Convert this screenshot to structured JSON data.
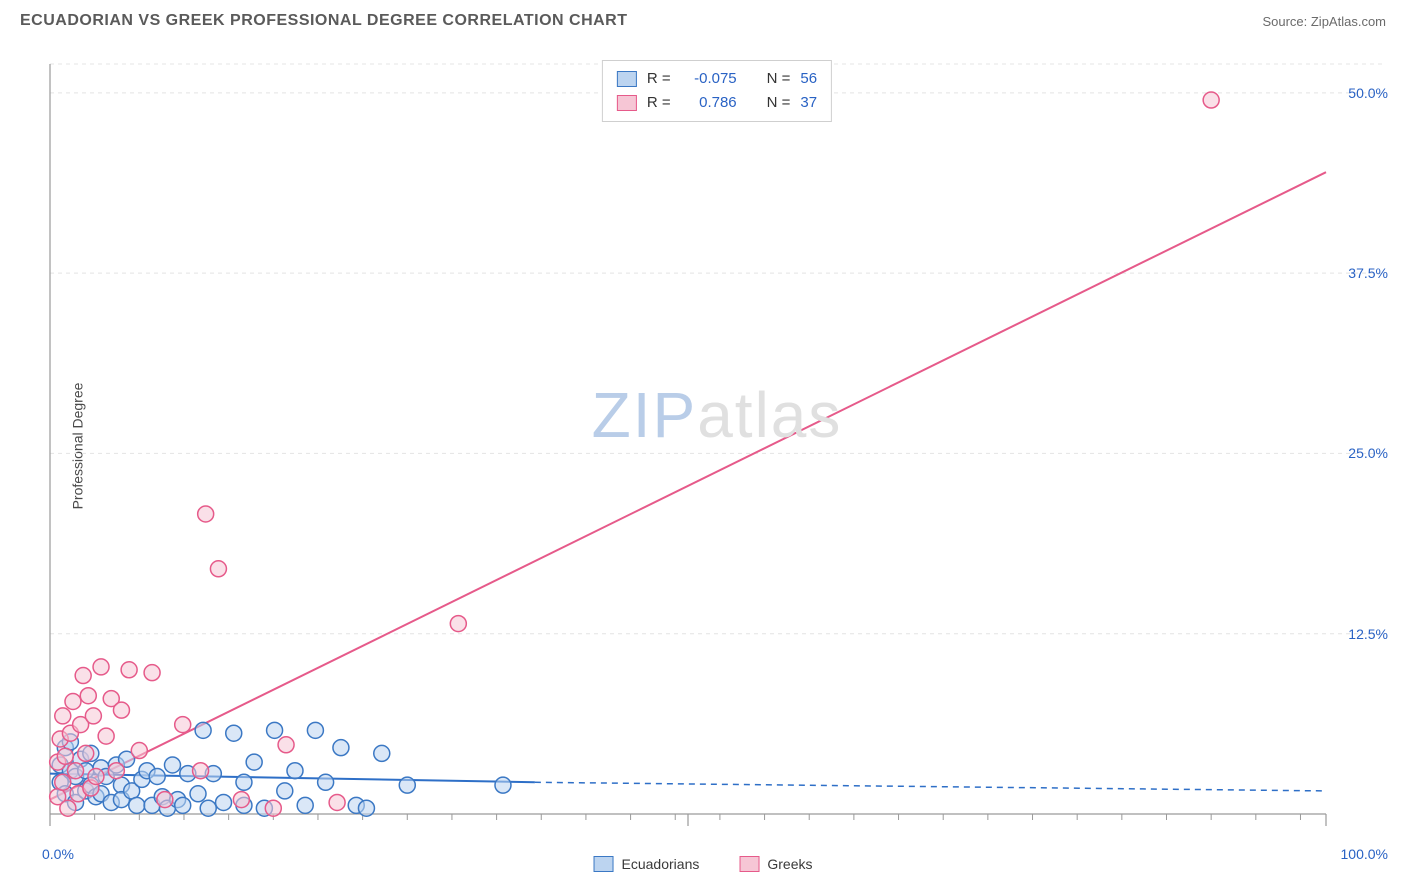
{
  "header": {
    "title": "ECUADORIAN VS GREEK PROFESSIONAL DEGREE CORRELATION CHART",
    "source": "Source: ZipAtlas.com"
  },
  "watermark": {
    "part1": "ZIP",
    "part2": "atlas"
  },
  "y_axis_label": "Professional Degree",
  "chart": {
    "type": "scatter",
    "xlim": [
      0,
      100
    ],
    "ylim": [
      0,
      52
    ],
    "x_ticks_minor_step": 3.5,
    "x_ticks_major": [
      0,
      50,
      100
    ],
    "y_gridlines": [
      12.5,
      25.0,
      37.5,
      50.0
    ],
    "y_tick_labels": [
      "12.5%",
      "25.0%",
      "37.5%",
      "50.0%"
    ],
    "x_corner_left": "0.0%",
    "x_corner_right": "100.0%",
    "background_color": "#ffffff",
    "grid_color": "#e4e4e4",
    "axis_color": "#9a9a9a",
    "marker_radius": 8,
    "marker_stroke_width": 1.5,
    "series": [
      {
        "name": "Ecuadorians",
        "fill": "#bcd4f0",
        "stroke": "#3b78c4",
        "fill_opacity": 0.55,
        "R": "-0.075",
        "N": "56",
        "regression": {
          "x1": 0,
          "y1": 2.8,
          "x2": 38,
          "y2": 2.2,
          "dash_from_x": 38,
          "dash_to_x": 100,
          "dash_y2": 1.6,
          "color": "#2e6fc7",
          "width": 2
        },
        "points": [
          [
            0.8,
            3.4
          ],
          [
            0.8,
            2.2
          ],
          [
            1.2,
            4.6
          ],
          [
            1.2,
            1.4
          ],
          [
            1.6,
            3.0
          ],
          [
            1.6,
            5.0
          ],
          [
            2.0,
            2.6
          ],
          [
            2.0,
            0.8
          ],
          [
            2.4,
            3.8
          ],
          [
            2.8,
            3.0
          ],
          [
            2.8,
            1.6
          ],
          [
            3.2,
            4.2
          ],
          [
            3.2,
            2.0
          ],
          [
            3.6,
            1.2
          ],
          [
            4.0,
            3.2
          ],
          [
            4.0,
            1.4
          ],
          [
            4.4,
            2.6
          ],
          [
            4.8,
            0.8
          ],
          [
            5.2,
            3.4
          ],
          [
            5.6,
            2.0
          ],
          [
            5.6,
            1.0
          ],
          [
            6.0,
            3.8
          ],
          [
            6.4,
            1.6
          ],
          [
            6.8,
            0.6
          ],
          [
            7.2,
            2.4
          ],
          [
            7.6,
            3.0
          ],
          [
            8.0,
            0.6
          ],
          [
            8.4,
            2.6
          ],
          [
            8.8,
            1.2
          ],
          [
            9.2,
            0.4
          ],
          [
            9.6,
            3.4
          ],
          [
            10.0,
            1.0
          ],
          [
            10.4,
            0.6
          ],
          [
            10.8,
            2.8
          ],
          [
            11.6,
            1.4
          ],
          [
            12.0,
            5.8
          ],
          [
            12.4,
            0.4
          ],
          [
            12.8,
            2.8
          ],
          [
            13.6,
            0.8
          ],
          [
            14.4,
            5.6
          ],
          [
            15.2,
            2.2
          ],
          [
            15.2,
            0.6
          ],
          [
            16.0,
            3.6
          ],
          [
            16.8,
            0.4
          ],
          [
            17.6,
            5.8
          ],
          [
            18.4,
            1.6
          ],
          [
            19.2,
            3.0
          ],
          [
            20.0,
            0.6
          ],
          [
            20.8,
            5.8
          ],
          [
            21.6,
            2.2
          ],
          [
            22.8,
            4.6
          ],
          [
            24.0,
            0.6
          ],
          [
            24.8,
            0.4
          ],
          [
            26.0,
            4.2
          ],
          [
            28.0,
            2.0
          ],
          [
            35.5,
            2.0
          ]
        ]
      },
      {
        "name": "Greeks",
        "fill": "#f6c6d5",
        "stroke": "#e65a8a",
        "fill_opacity": 0.55,
        "R": "0.786",
        "N": "37",
        "regression": {
          "x1": 0,
          "y1": 1.0,
          "x2": 100,
          "y2": 44.5,
          "color": "#e65a8a",
          "width": 2
        },
        "points": [
          [
            0.6,
            3.6
          ],
          [
            0.6,
            1.2
          ],
          [
            0.8,
            5.2
          ],
          [
            1.0,
            6.8
          ],
          [
            1.0,
            2.2
          ],
          [
            1.2,
            4.0
          ],
          [
            1.4,
            0.4
          ],
          [
            1.6,
            5.6
          ],
          [
            1.8,
            7.8
          ],
          [
            2.0,
            3.0
          ],
          [
            2.2,
            1.4
          ],
          [
            2.4,
            6.2
          ],
          [
            2.6,
            9.6
          ],
          [
            2.8,
            4.2
          ],
          [
            3.0,
            8.2
          ],
          [
            3.2,
            1.8
          ],
          [
            3.4,
            6.8
          ],
          [
            3.6,
            2.6
          ],
          [
            4.0,
            10.2
          ],
          [
            4.4,
            5.4
          ],
          [
            4.8,
            8.0
          ],
          [
            5.2,
            3.0
          ],
          [
            5.6,
            7.2
          ],
          [
            6.2,
            10.0
          ],
          [
            7.0,
            4.4
          ],
          [
            8.0,
            9.8
          ],
          [
            9.0,
            1.0
          ],
          [
            10.4,
            6.2
          ],
          [
            11.8,
            3.0
          ],
          [
            12.2,
            20.8
          ],
          [
            13.2,
            17.0
          ],
          [
            15.0,
            1.0
          ],
          [
            17.5,
            0.4
          ],
          [
            18.5,
            4.8
          ],
          [
            22.5,
            0.8
          ],
          [
            32.0,
            13.2
          ],
          [
            91.0,
            49.5
          ]
        ]
      }
    ]
  },
  "legend_bottom": {
    "items": [
      {
        "label": "Ecuadorians",
        "fill": "#bcd4f0",
        "stroke": "#3b78c4"
      },
      {
        "label": "Greeks",
        "fill": "#f6c6d5",
        "stroke": "#e65a8a"
      }
    ]
  },
  "legend_box": {
    "rows": [
      {
        "swatch_fill": "#bcd4f0",
        "swatch_stroke": "#3b78c4",
        "r_label": "R =",
        "r_val": "-0.075",
        "n_label": "N =",
        "n_val": "56"
      },
      {
        "swatch_fill": "#f6c6d5",
        "swatch_stroke": "#e65a8a",
        "r_label": "R =",
        "r_val": "0.786",
        "n_label": "N =",
        "n_val": "37"
      }
    ]
  }
}
